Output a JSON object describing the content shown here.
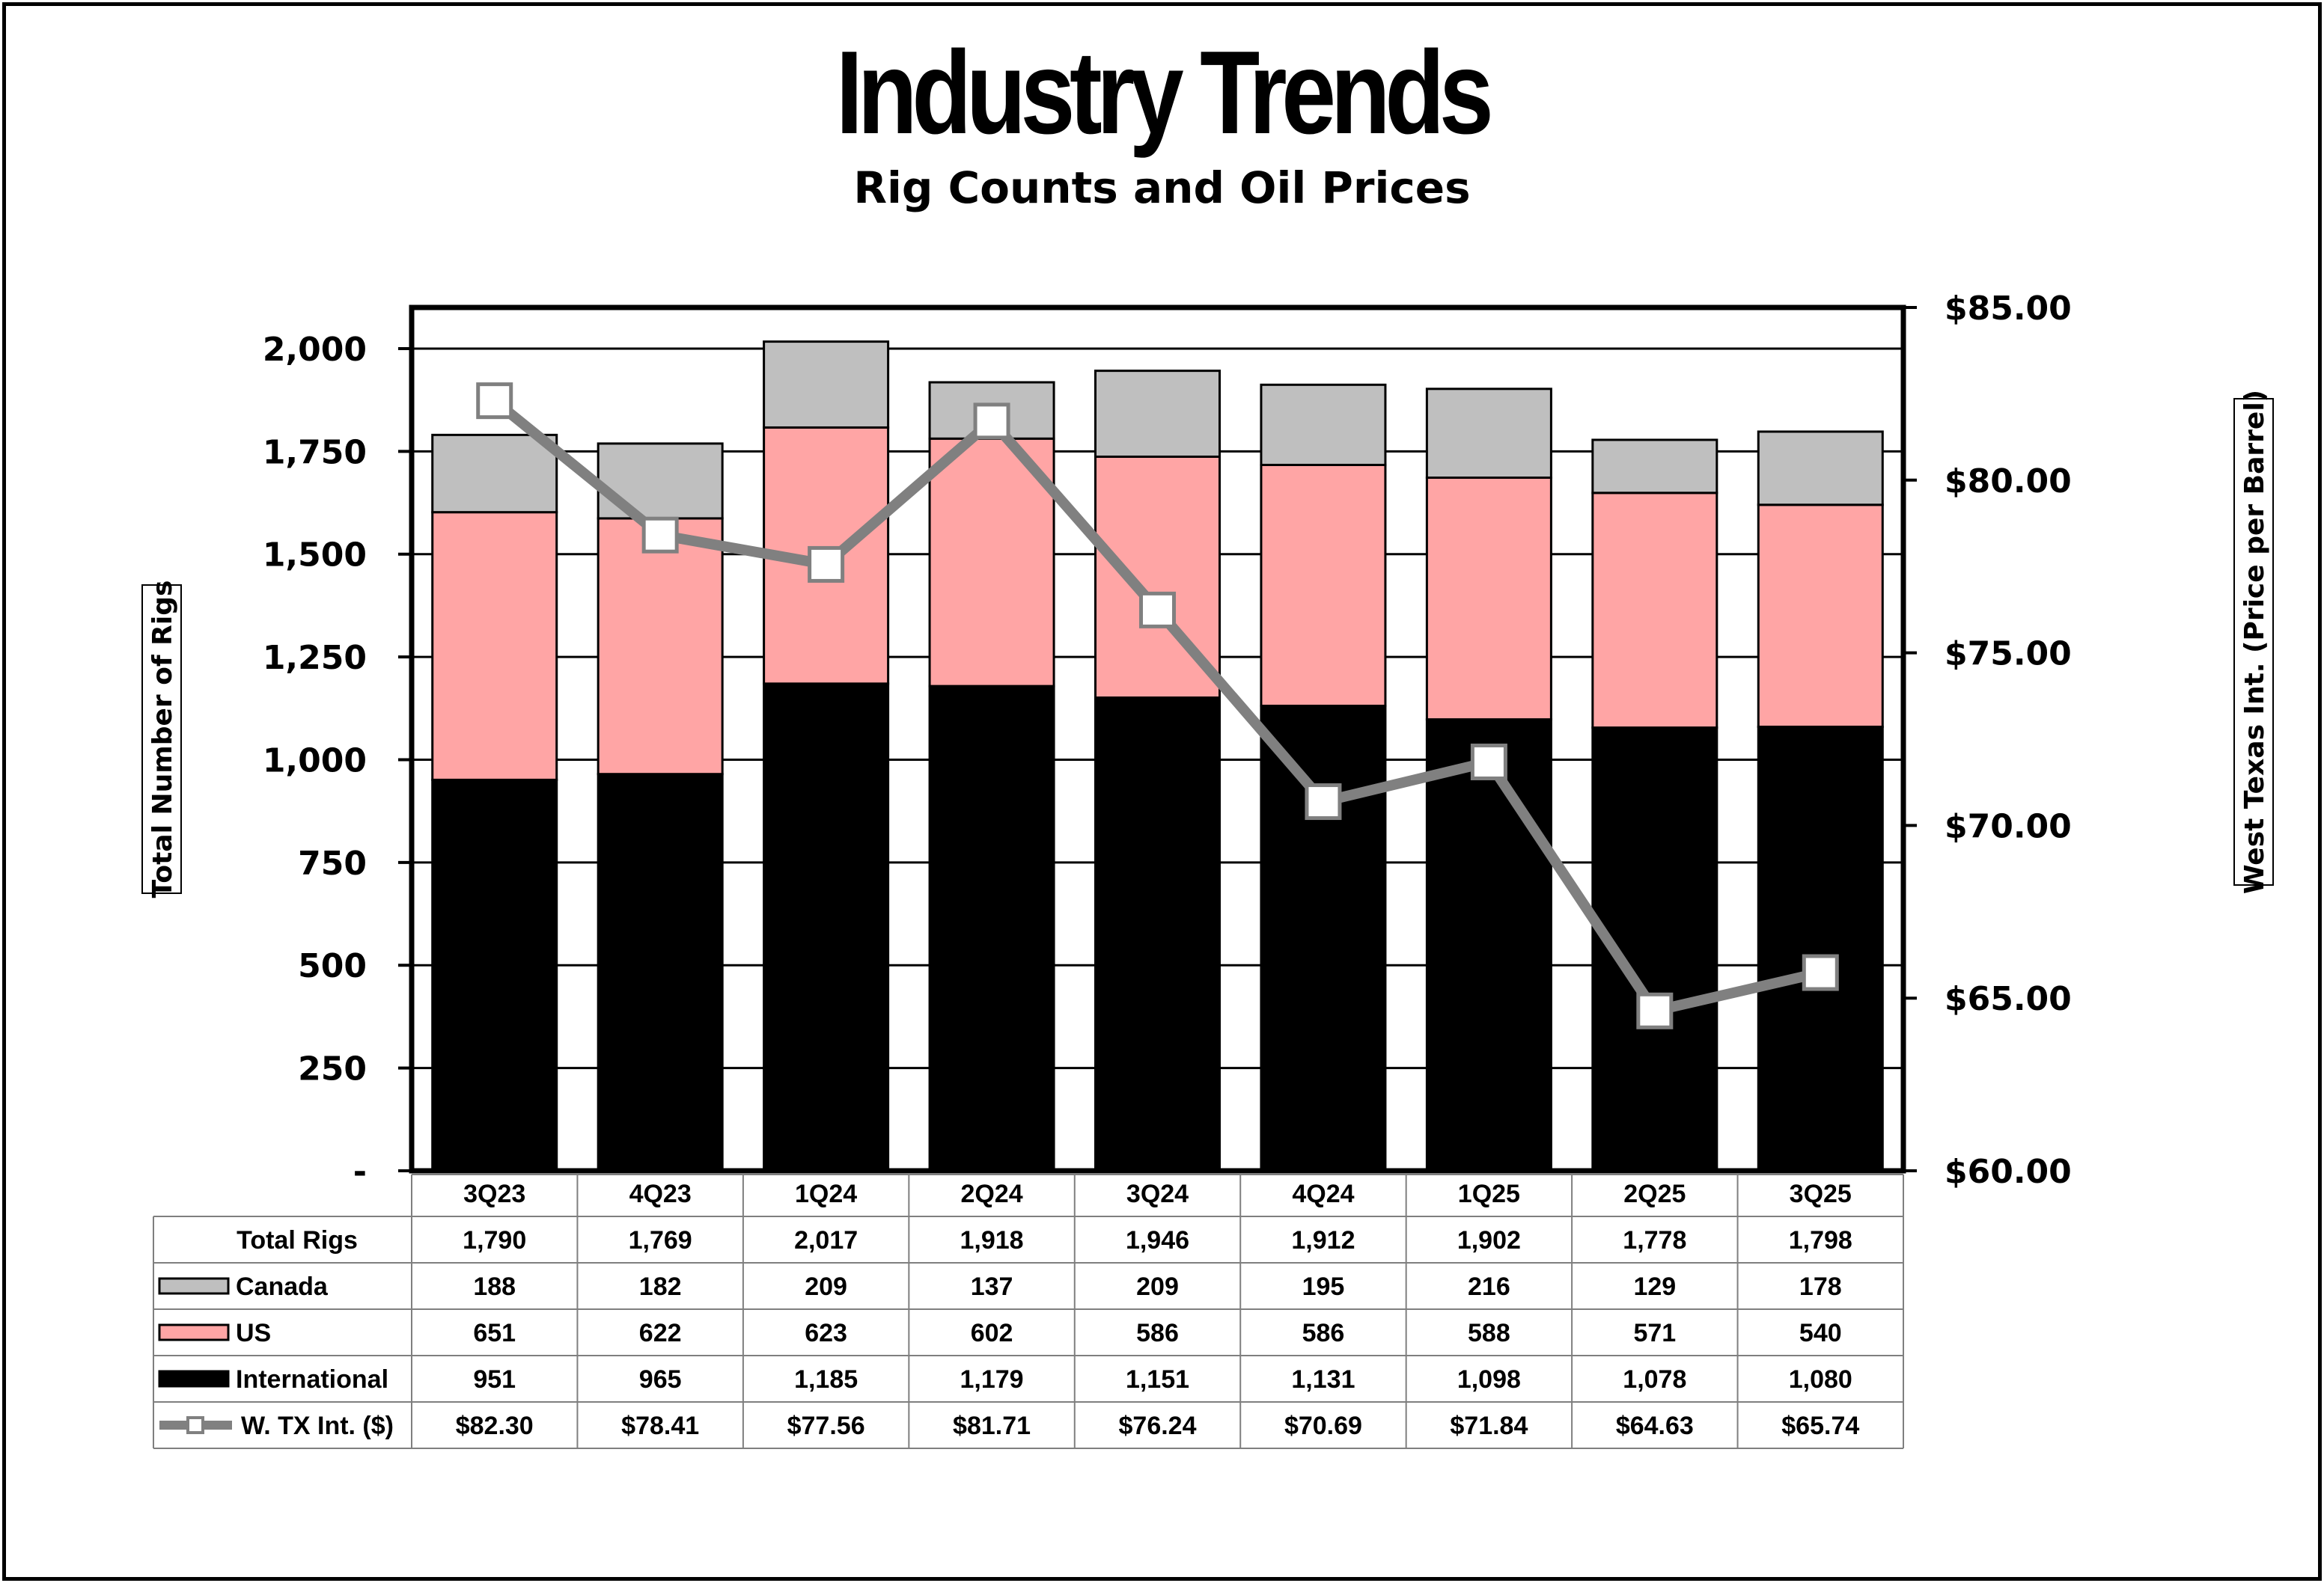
{
  "header": {
    "title": "Industry Trends",
    "subtitle": "Rig Counts and Oil Prices"
  },
  "colors": {
    "canada": "#bfbfbf",
    "us": "#ffa5a5",
    "international": "#000000",
    "wti_line": "#808080"
  },
  "chart_data": {
    "type": "bar",
    "stacked": true,
    "title": "Industry Trends",
    "subtitle": "Rig Counts and Oil Prices",
    "categories": [
      "3Q23",
      "4Q23",
      "1Q24",
      "2Q24",
      "3Q24",
      "4Q24",
      "1Q25",
      "2Q25",
      "3Q25"
    ],
    "ylabel": "Total Number of Rigs",
    "y2label": "West Texas Int. (Price per Barrel)",
    "ylim": [
      0,
      2100
    ],
    "y2lim": [
      60,
      85
    ],
    "y_ticks": [
      "-",
      "250",
      "500",
      "750",
      "1,000",
      "1,250",
      "1,500",
      "1,750",
      "2,000"
    ],
    "y2_ticks": [
      "$60.00",
      "$65.00",
      "$70.00",
      "$75.00",
      "$80.00",
      "$85.00"
    ],
    "grid": true,
    "legend": "data-table",
    "total_label": "Total Rigs",
    "totals": [
      "1,790",
      "1,769",
      "2,017",
      "1,918",
      "1,946",
      "1,912",
      "1,902",
      "1,778",
      "1,798"
    ],
    "total_values": [
      1790,
      1769,
      2017,
      1918,
      1946,
      1912,
      1902,
      1778,
      1798
    ],
    "series": [
      {
        "name": "International",
        "type": "bar",
        "color": "#000000",
        "values": [
          951,
          965,
          1185,
          1179,
          1151,
          1131,
          1098,
          1078,
          1080
        ],
        "labels": [
          "951",
          "965",
          "1,185",
          "1,179",
          "1,151",
          "1,131",
          "1,098",
          "1,078",
          "1,080"
        ]
      },
      {
        "name": "US",
        "type": "bar",
        "color": "#ffa5a5",
        "values": [
          651,
          622,
          623,
          602,
          586,
          586,
          588,
          571,
          540
        ],
        "labels": [
          "651",
          "622",
          "623",
          "602",
          "586",
          "586",
          "588",
          "571",
          "540"
        ]
      },
      {
        "name": "Canada",
        "type": "bar",
        "color": "#bfbfbf",
        "values": [
          188,
          182,
          209,
          137,
          209,
          195,
          216,
          129,
          178
        ],
        "labels": [
          "188",
          "182",
          "209",
          "137",
          "209",
          "195",
          "216",
          "129",
          "178"
        ]
      },
      {
        "name": "W. TX Int. ($)",
        "type": "line",
        "axis": "right",
        "color": "#808080",
        "values": [
          82.3,
          78.41,
          77.56,
          81.71,
          76.24,
          70.69,
          71.84,
          64.63,
          65.74
        ],
        "labels": [
          "$82.30",
          "$78.41",
          "$77.56",
          "$81.71",
          "$76.24",
          "$70.69",
          "$71.84",
          "$64.63",
          "$65.74"
        ]
      }
    ]
  }
}
